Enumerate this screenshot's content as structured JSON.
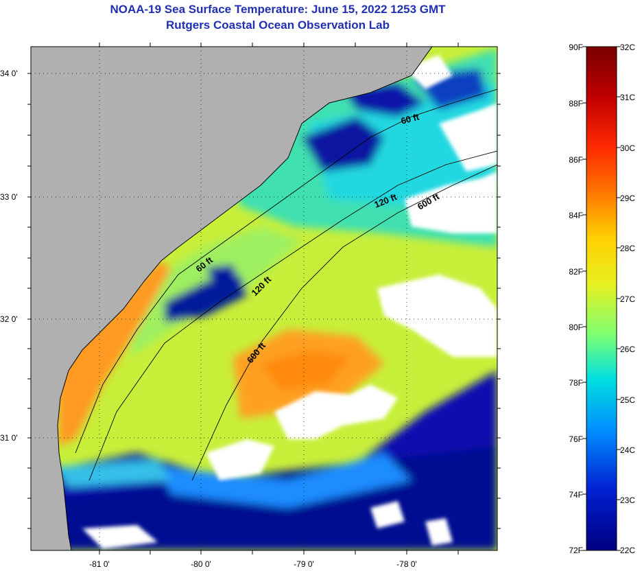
{
  "title": {
    "line1": "NOAA-19 Sea Surface Temperature:  June 15, 2022 1253 GMT",
    "line2": "Rutgers Coastal Ocean Observation Lab"
  },
  "axes": {
    "lat_labels": [
      "34 0'",
      "33 0'",
      "32 0'",
      "31 0'"
    ],
    "lon_labels": [
      "-81 0'",
      "-80 0'",
      "-79 0'",
      "-78 0'"
    ]
  },
  "contours": [
    "60 ft",
    "120 ft",
    "600 ft",
    "60 ft",
    "120 ft",
    "600 ft"
  ],
  "colorbar": {
    "f_labels": [
      "90F",
      "88F",
      "86F",
      "84F",
      "82F",
      "80F",
      "78F",
      "76F",
      "74F",
      "72F"
    ],
    "c_labels": [
      "32C",
      "31C",
      "30C",
      "29C",
      "28C",
      "27C",
      "26C",
      "25C",
      "24C",
      "23C",
      "22C"
    ],
    "colors": [
      "#7a0000",
      "#c00000",
      "#ff2a00",
      "#ff8000",
      "#ffd000",
      "#e8f020",
      "#80ff70",
      "#00e0e0",
      "#0090ff",
      "#0020d0",
      "#000080"
    ]
  },
  "palette": {
    "land": "#b0b0b0",
    "cloud": "#ffffff",
    "title": "#1f2fb0"
  }
}
